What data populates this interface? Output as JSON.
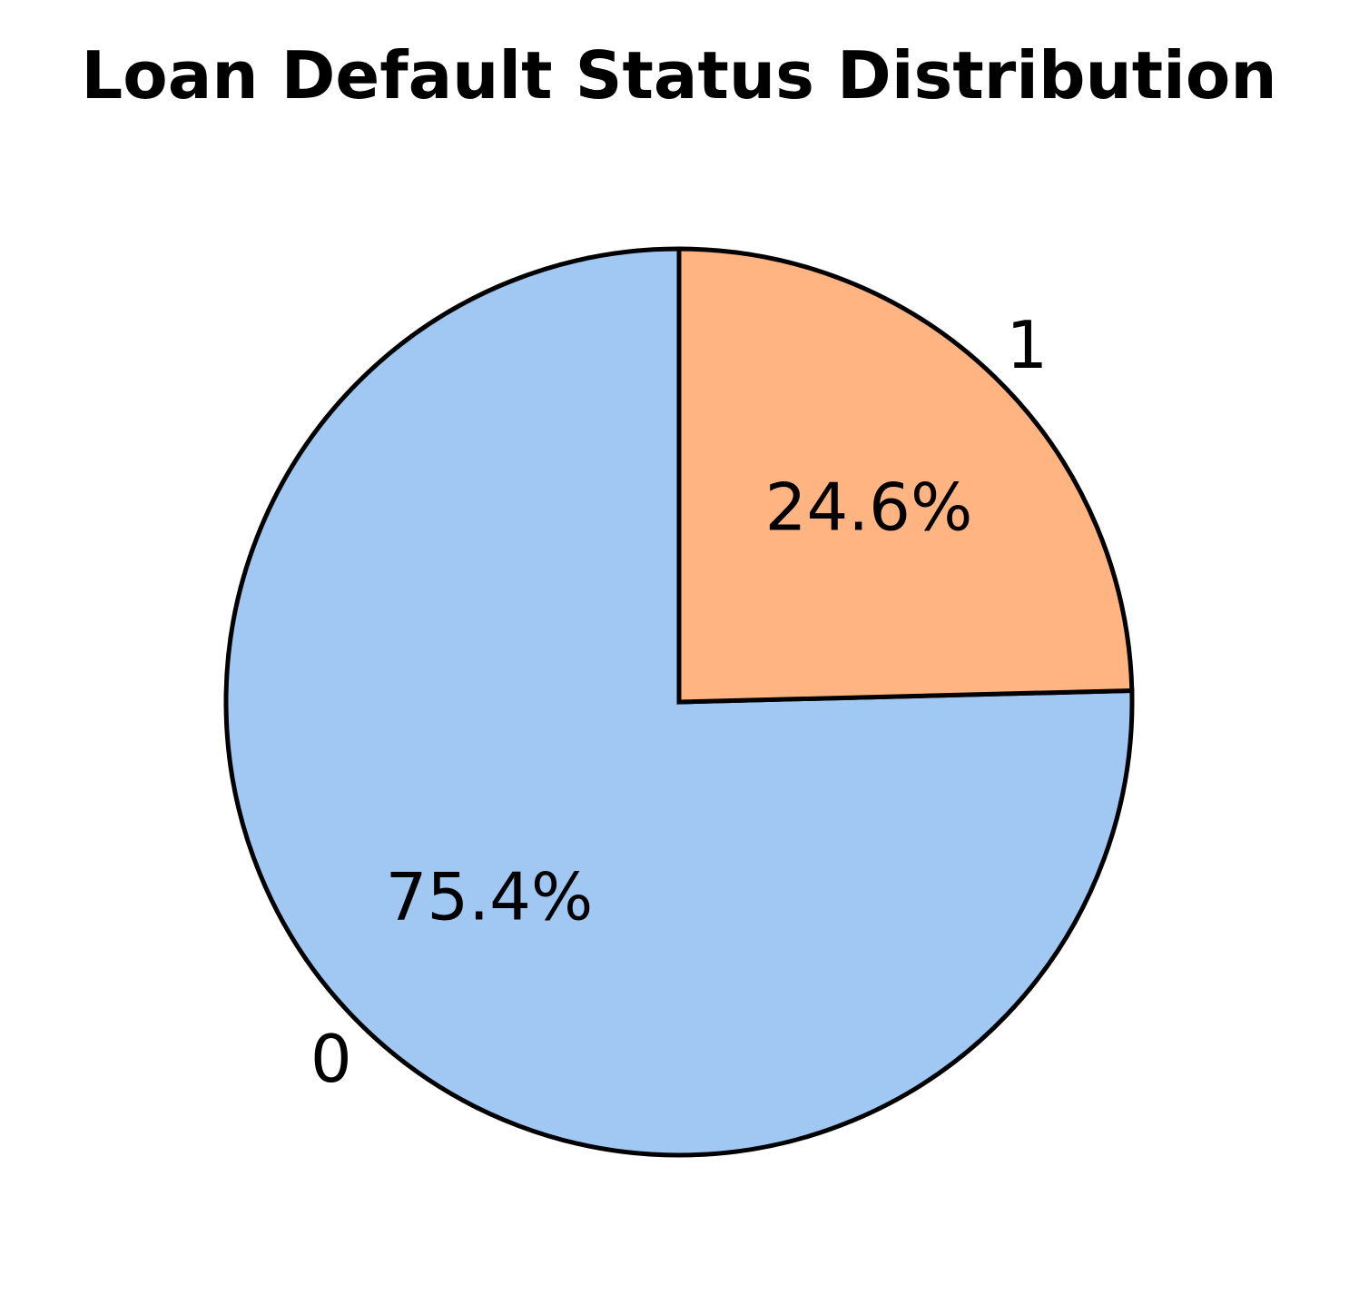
{
  "chart_data": {
    "type": "pie",
    "title": "Loan Default Status Distribution",
    "slices": [
      {
        "label": "0",
        "value": 75.4,
        "value_label": "75.4%",
        "color": "#a1c8f3"
      },
      {
        "label": "1",
        "value": 24.6,
        "value_label": "24.6%",
        "color": "#ffb482"
      }
    ],
    "start_angle_deg": 90,
    "direction": "clockwise-for-second-slice",
    "edge_color": "#000000",
    "legend": "none"
  }
}
